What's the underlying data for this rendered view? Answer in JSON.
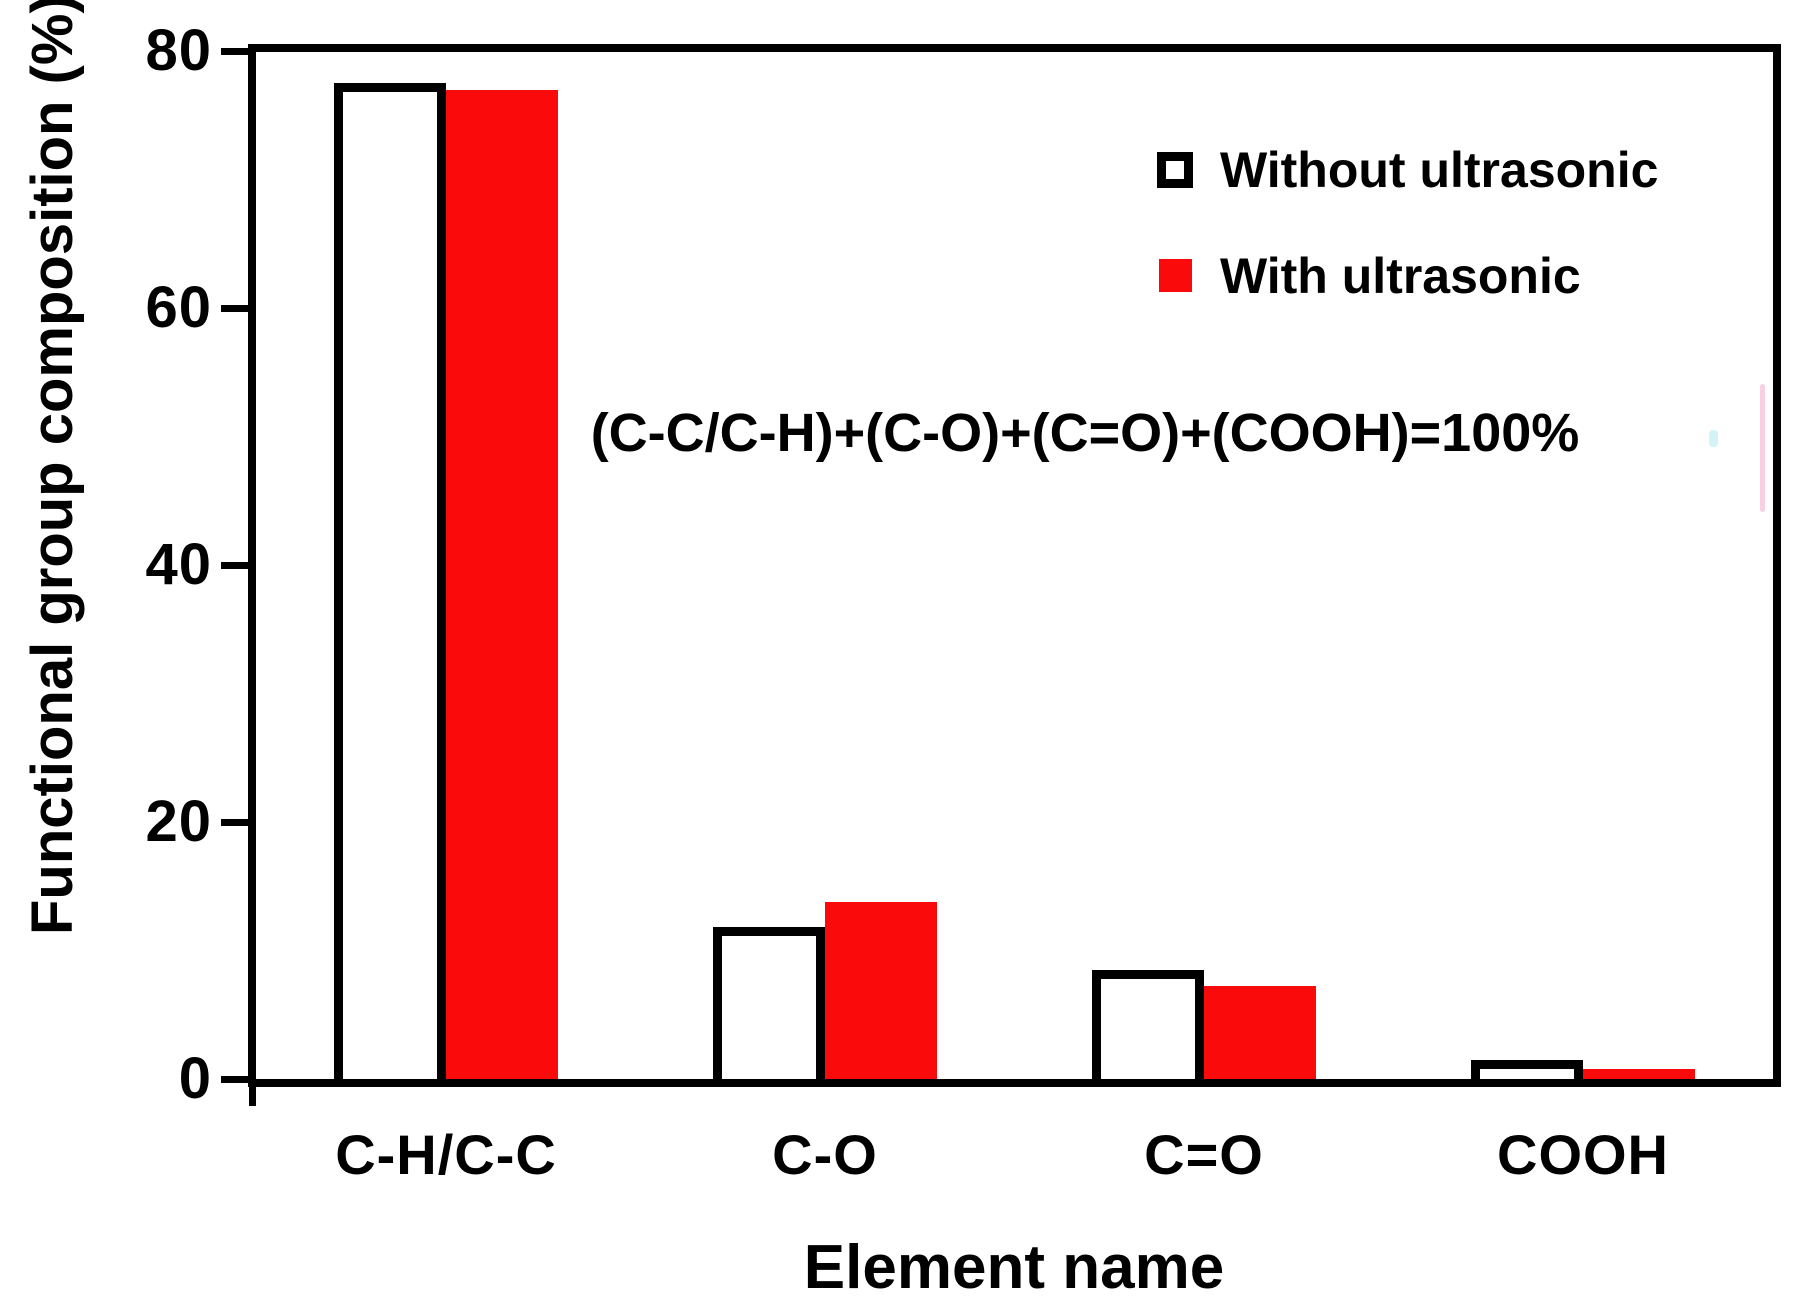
{
  "chart_data": {
    "type": "bar",
    "title": "",
    "xlabel": "Element name",
    "ylabel": "Functional group composition (%)",
    "categories": [
      "C-H/C-C",
      "C-O",
      "C=O",
      "COOH"
    ],
    "series": [
      {
        "name": "Without ultrasonic",
        "marker": "open-black",
        "fill": "#ffffff",
        "border_color": "#000000",
        "values": [
          77.5,
          11.8,
          8.5,
          1.5
        ]
      },
      {
        "name": "With ultrasonic",
        "marker": "filled-red",
        "fill": "#fa0a0a",
        "border_color": "#fa0a0a",
        "values": [
          77.0,
          13.8,
          7.2,
          0.8
        ]
      }
    ],
    "ylim": [
      0,
      80
    ],
    "yticks": [
      0,
      20,
      40,
      60,
      80
    ],
    "annotation": "(C-C/C-H)+(C-O)+(C=O)+(COOH)=100%",
    "legend_position": "upper-right",
    "grid": false
  },
  "colors": {
    "bar_red": "#fa0a0a",
    "axis_black": "#000000",
    "background": "#ffffff"
  }
}
